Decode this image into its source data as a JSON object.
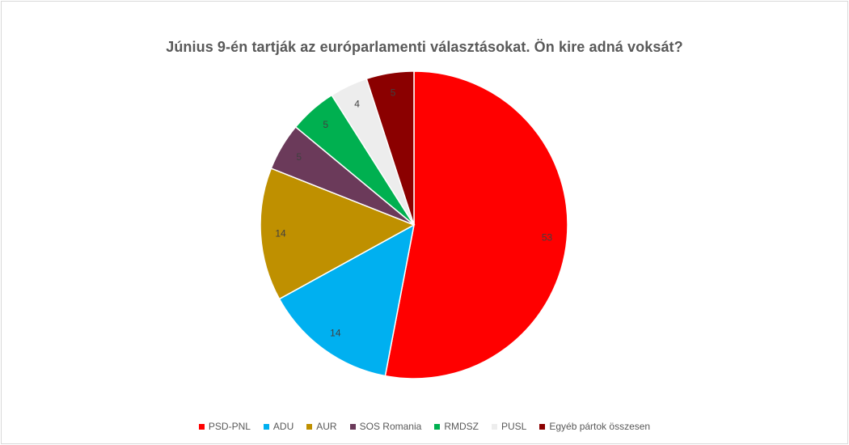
{
  "chart_data": {
    "type": "pie",
    "title": "Június 9-én tartják az európarlamenti választásokat. Ön kire adná voksát?",
    "categories": [
      "PSD-PNL",
      "ADU",
      "AUR",
      "SOS Romania",
      "RMDSZ",
      "PUSL",
      "Egyéb pártok összesen"
    ],
    "values": [
      53,
      14,
      14,
      5,
      5,
      4,
      5
    ],
    "colors": [
      "#ff0000",
      "#00b0f0",
      "#bf9000",
      "#6b3a5a",
      "#00b050",
      "#ededed",
      "#8b0000"
    ],
    "legend_position": "bottom",
    "start_angle": "12 o'clock",
    "direction": "clockwise"
  }
}
